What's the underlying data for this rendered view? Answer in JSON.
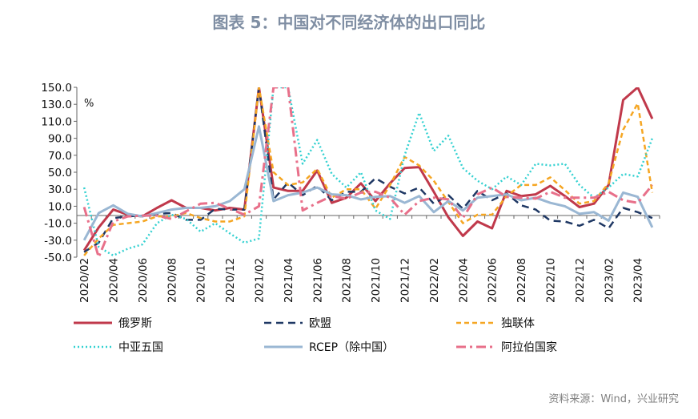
{
  "chart_data": {
    "type": "line",
    "title": "图表 5：中国对不同经济体的出口同比",
    "unit": "%",
    "source": "资料来源：Wind，兴业研究",
    "ylim": [
      -50,
      150
    ],
    "yticks": [
      "150.0",
      "130.0",
      "110.0",
      "90.0",
      "70.0",
      "50.0",
      "30.0",
      "10.0",
      "-10.0",
      "-30.0",
      "-50.0"
    ],
    "x": [
      "2020/02",
      "2020/03",
      "2020/04",
      "2020/05",
      "2020/06",
      "2020/07",
      "2020/08",
      "2020/09",
      "2020/10",
      "2020/11",
      "2020/12",
      "2021/01",
      "2021/02",
      "2021/03",
      "2021/04",
      "2021/05",
      "2021/06",
      "2021/07",
      "2021/08",
      "2021/09",
      "2021/10",
      "2021/11",
      "2021/12",
      "2022/01",
      "2022/02",
      "2022/03",
      "2022/04",
      "2022/05",
      "2022/06",
      "2022/07",
      "2022/08",
      "2022/09",
      "2022/10",
      "2022/11",
      "2022/12",
      "2023/01",
      "2023/02",
      "2023/03",
      "2023/04",
      "2023/05"
    ],
    "xticklabels": [
      "2020/02",
      "2020/04",
      "2020/06",
      "2020/08",
      "2020/10",
      "2020/12",
      "2021/02",
      "2021/04",
      "2021/06",
      "2021/08",
      "2021/10",
      "2021/12",
      "2022/02",
      "2022/04",
      "2022/06",
      "2022/08",
      "2022/10",
      "2022/12",
      "2023/02",
      "2023/04"
    ],
    "grid": false,
    "legend_position": "bottom",
    "series": [
      {
        "name": "俄罗斯",
        "color": "#c0394b",
        "style": "solid",
        "width": 3,
        "values": [
          -42,
          -15,
          6,
          0,
          -2,
          8,
          17,
          8,
          8,
          5,
          8,
          6,
          150,
          32,
          28,
          28,
          52,
          14,
          20,
          37,
          16,
          37,
          55,
          56,
          27,
          -3,
          -25,
          -8,
          -16,
          28,
          22,
          24,
          34,
          22,
          9,
          13,
          35,
          135,
          150,
          113
        ]
      },
      {
        "name": "欧盟",
        "color": "#1f3864",
        "style": "dash",
        "width": 2.5,
        "values": [
          -44,
          -33,
          -4,
          -2,
          -1,
          1,
          2,
          -6,
          -6,
          7,
          6,
          6,
          150,
          18,
          38,
          23,
          34,
          17,
          27,
          27,
          43,
          33,
          25,
          32,
          13,
          23,
          7,
          28,
          17,
          25,
          11,
          6,
          -7,
          -8,
          -13,
          -6,
          -16,
          8,
          3,
          -4
        ]
      },
      {
        "name": "独联体",
        "color": "#f5a623",
        "style": "shortdash",
        "width": 2.5,
        "values": [
          -48,
          -28,
          -12,
          -10,
          -8,
          -2,
          -2,
          2,
          -4,
          -8,
          -8,
          -2,
          150,
          50,
          35,
          38,
          54,
          20,
          30,
          30,
          7,
          35,
          68,
          58,
          40,
          15,
          -10,
          0,
          0,
          22,
          35,
          35,
          44,
          29,
          13,
          16,
          37,
          100,
          131,
          26
        ]
      },
      {
        "name": "中亚五国",
        "color": "#34d1d1",
        "style": "dot",
        "width": 2.5,
        "values": [
          32,
          -38,
          -48,
          -40,
          -35,
          -10,
          0,
          -5,
          -20,
          -10,
          -22,
          -33,
          -28,
          150,
          150,
          60,
          88,
          48,
          32,
          50,
          5,
          -5,
          70,
          120,
          75,
          93,
          55,
          40,
          30,
          45,
          35,
          60,
          58,
          60,
          35,
          20,
          32,
          48,
          45,
          90
        ]
      },
      {
        "name": "RCEP（除中国）",
        "color": "#9ab7d3",
        "style": "solid",
        "width": 3,
        "values": [
          -30,
          2,
          11,
          1,
          -2,
          2,
          6,
          8,
          8,
          10,
          16,
          30,
          104,
          16,
          23,
          26,
          32,
          24,
          23,
          18,
          21,
          22,
          14,
          22,
          3,
          16,
          5,
          20,
          22,
          24,
          17,
          20,
          14,
          10,
          1,
          3,
          -7,
          26,
          21,
          -15
        ]
      },
      {
        "name": "阿拉伯国家",
        "color": "#e8708a",
        "style": "dashdot",
        "width": 3,
        "values": [
          9,
          -50,
          -8,
          -2,
          -1,
          -1,
          -5,
          4,
          13,
          14,
          7,
          0,
          10,
          150,
          150,
          5,
          14,
          22,
          19,
          26,
          27,
          20,
          0,
          16,
          20,
          18,
          -4,
          24,
          32,
          21,
          20,
          19,
          27,
          20,
          20,
          20,
          27,
          17,
          14,
          35
        ]
      }
    ]
  }
}
